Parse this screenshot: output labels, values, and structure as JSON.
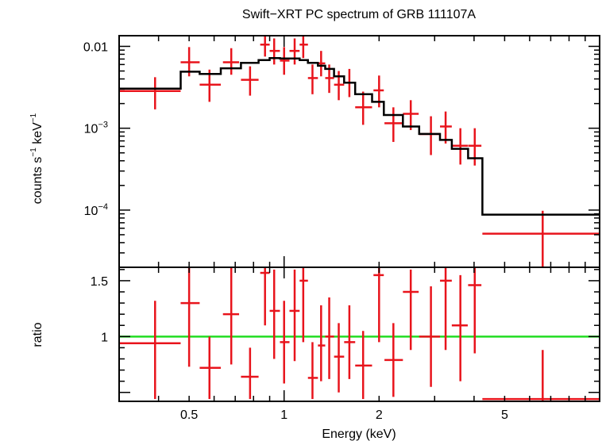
{
  "title": "Swift−XRT PC spectrum of GRB 111107A",
  "chart_data": [
    {
      "type": "line",
      "panel": "spectrum",
      "xscale": "log",
      "yscale": "log",
      "xlim": [
        0.3,
        10
      ],
      "ylim": [
        2e-05,
        0.0135
      ],
      "ylabel": {
        "main": "counts s",
        "exp1": "−1",
        "mid": " keV",
        "exp2": "−1"
      },
      "yticks": [
        {
          "value": 0.01,
          "label": "0.01"
        },
        {
          "value": 0.001,
          "base": "10",
          "exp": "−3"
        },
        {
          "value": 0.0001,
          "base": "10",
          "exp": "−4"
        }
      ],
      "colors": {
        "data": "#e8141c",
        "model": "#000000",
        "axes": "#000000"
      },
      "series": [
        {
          "role": "data",
          "points": [
            {
              "x": 0.39,
              "xlo": 0.3,
              "xhi": 0.47,
              "y": 0.00285,
              "ylo": 0.0017,
              "yhi": 0.0042
            },
            {
              "x": 0.5,
              "xlo": 0.47,
              "xhi": 0.54,
              "y": 0.0064,
              "ylo": 0.0043,
              "yhi": 0.0098
            },
            {
              "x": 0.58,
              "xlo": 0.54,
              "xhi": 0.63,
              "y": 0.0034,
              "ylo": 0.0021,
              "yhi": 0.0052
            },
            {
              "x": 0.68,
              "xlo": 0.64,
              "xhi": 0.72,
              "y": 0.0064,
              "ylo": 0.0045,
              "yhi": 0.0095
            },
            {
              "x": 0.78,
              "xlo": 0.73,
              "xhi": 0.83,
              "y": 0.0039,
              "ylo": 0.0025,
              "yhi": 0.0057
            },
            {
              "x": 0.87,
              "xlo": 0.84,
              "xhi": 0.9,
              "y": 0.0105,
              "ylo": 0.0075,
              "yhi": 0.0135
            },
            {
              "x": 0.93,
              "xlo": 0.9,
              "xhi": 0.97,
              "y": 0.0088,
              "ylo": 0.006,
              "yhi": 0.0125
            },
            {
              "x": 1.0,
              "xlo": 0.97,
              "xhi": 1.04,
              "y": 0.0067,
              "ylo": 0.0045,
              "yhi": 0.0098
            },
            {
              "x": 1.08,
              "xlo": 1.04,
              "xhi": 1.12,
              "y": 0.0088,
              "ylo": 0.006,
              "yhi": 0.0125
            },
            {
              "x": 1.15,
              "xlo": 1.12,
              "xhi": 1.19,
              "y": 0.0105,
              "ylo": 0.0072,
              "yhi": 0.0135
            },
            {
              "x": 1.23,
              "xlo": 1.19,
              "xhi": 1.28,
              "y": 0.0041,
              "ylo": 0.0026,
              "yhi": 0.006
            },
            {
              "x": 1.31,
              "xlo": 1.28,
              "xhi": 1.35,
              "y": 0.0062,
              "ylo": 0.0043,
              "yhi": 0.0088
            },
            {
              "x": 1.39,
              "xlo": 1.35,
              "xhi": 1.44,
              "y": 0.0041,
              "ylo": 0.0027,
              "yhi": 0.006
            },
            {
              "x": 1.49,
              "xlo": 1.44,
              "xhi": 1.55,
              "y": 0.0034,
              "ylo": 0.0022,
              "yhi": 0.005
            },
            {
              "x": 1.61,
              "xlo": 1.55,
              "xhi": 1.68,
              "y": 0.0036,
              "ylo": 0.0024,
              "yhi": 0.0053
            },
            {
              "x": 1.78,
              "xlo": 1.68,
              "xhi": 1.9,
              "y": 0.0018,
              "ylo": 0.0011,
              "yhi": 0.0028
            },
            {
              "x": 2.0,
              "xlo": 1.92,
              "xhi": 2.07,
              "y": 0.0029,
              "ylo": 0.0018,
              "yhi": 0.0044
            },
            {
              "x": 2.22,
              "xlo": 2.08,
              "xhi": 2.38,
              "y": 0.00115,
              "ylo": 0.00068,
              "yhi": 0.0018
            },
            {
              "x": 2.52,
              "xlo": 2.38,
              "xhi": 2.67,
              "y": 0.0015,
              "ylo": 0.00095,
              "yhi": 0.0022
            },
            {
              "x": 2.92,
              "xlo": 2.68,
              "xhi": 3.12,
              "y": 0.00085,
              "ylo": 0.00047,
              "yhi": 0.0014
            },
            {
              "x": 3.25,
              "xlo": 3.12,
              "xhi": 3.4,
              "y": 0.00105,
              "ylo": 0.00065,
              "yhi": 0.0016
            },
            {
              "x": 3.62,
              "xlo": 3.4,
              "xhi": 3.82,
              "y": 0.00061,
              "ylo": 0.00036,
              "yhi": 0.001
            },
            {
              "x": 4.02,
              "xlo": 3.83,
              "xhi": 4.22,
              "y": 0.00061,
              "ylo": 0.00035,
              "yhi": 0.001
            },
            {
              "x": 6.6,
              "xlo": 4.25,
              "xhi": 10.0,
              "y": 5.15e-05,
              "ylo": 2e-05,
              "yhi": 9.8e-05
            }
          ]
        },
        {
          "role": "model",
          "steps": [
            {
              "xlo": 0.3,
              "xhi": 0.47,
              "y": 0.00305
            },
            {
              "xlo": 0.47,
              "xhi": 0.54,
              "y": 0.0049
            },
            {
              "xlo": 0.54,
              "xhi": 0.63,
              "y": 0.0046
            },
            {
              "xlo": 0.63,
              "xhi": 0.73,
              "y": 0.0054
            },
            {
              "xlo": 0.73,
              "xhi": 0.83,
              "y": 0.0063
            },
            {
              "xlo": 0.83,
              "xhi": 0.9,
              "y": 0.0068
            },
            {
              "xlo": 0.9,
              "xhi": 0.97,
              "y": 0.0072
            },
            {
              "xlo": 0.97,
              "xhi": 1.04,
              "y": 0.0071
            },
            {
              "xlo": 1.04,
              "xhi": 1.12,
              "y": 0.0071
            },
            {
              "xlo": 1.12,
              "xhi": 1.19,
              "y": 0.0068
            },
            {
              "xlo": 1.19,
              "xhi": 1.28,
              "y": 0.0063
            },
            {
              "xlo": 1.28,
              "xhi": 1.35,
              "y": 0.0058
            },
            {
              "xlo": 1.35,
              "xhi": 1.44,
              "y": 0.0053
            },
            {
              "xlo": 1.44,
              "xhi": 1.55,
              "y": 0.0043
            },
            {
              "xlo": 1.55,
              "xhi": 1.68,
              "y": 0.0036
            },
            {
              "xlo": 1.68,
              "xhi": 1.9,
              "y": 0.0026
            },
            {
              "xlo": 1.9,
              "xhi": 2.07,
              "y": 0.0021
            },
            {
              "xlo": 2.07,
              "xhi": 2.38,
              "y": 0.00145
            },
            {
              "xlo": 2.38,
              "xhi": 2.68,
              "y": 0.00105
            },
            {
              "xlo": 2.68,
              "xhi": 3.12,
              "y": 0.00085
            },
            {
              "xlo": 3.12,
              "xhi": 3.4,
              "y": 0.00072
            },
            {
              "xlo": 3.4,
              "xhi": 3.83,
              "y": 0.00056
            },
            {
              "xlo": 3.83,
              "xhi": 4.25,
              "y": 0.00043
            },
            {
              "xlo": 4.25,
              "xhi": 10.0,
              "y": 8.8e-05
            }
          ]
        }
      ]
    },
    {
      "type": "scatter",
      "panel": "ratio",
      "xscale": "log",
      "yscale": "linear",
      "xlim": [
        0.3,
        10
      ],
      "ylim": [
        0.42,
        1.62
      ],
      "xlabel": "Energy (keV)",
      "ylabel": "ratio",
      "xticks": [
        {
          "value": 0.5,
          "label": "0.5"
        },
        {
          "value": 1,
          "label": "1"
        },
        {
          "value": 2,
          "label": "2"
        },
        {
          "value": 5,
          "label": "5"
        }
      ],
      "yticks": [
        {
          "value": 1,
          "label": "1"
        },
        {
          "value": 1.5,
          "label": "1.5"
        }
      ],
      "reference_line": {
        "y": 1.0,
        "color": "#22dd22"
      },
      "colors": {
        "data": "#e8141c",
        "axes": "#000000"
      },
      "points": [
        {
          "x": 0.39,
          "xlo": 0.3,
          "xhi": 0.47,
          "y": 0.94,
          "ylo": 0.44,
          "yhi": 1.32
        },
        {
          "x": 0.5,
          "xlo": 0.47,
          "xhi": 0.54,
          "y": 1.3,
          "ylo": 0.73,
          "yhi": 1.62
        },
        {
          "x": 0.58,
          "xlo": 0.54,
          "xhi": 0.63,
          "y": 0.72,
          "ylo": 0.44,
          "yhi": 1.0
        },
        {
          "x": 0.68,
          "xlo": 0.64,
          "xhi": 0.72,
          "y": 1.2,
          "ylo": 0.75,
          "yhi": 1.62
        },
        {
          "x": 0.78,
          "xlo": 0.73,
          "xhi": 0.83,
          "y": 0.64,
          "ylo": 0.44,
          "yhi": 0.9
        },
        {
          "x": 0.87,
          "xlo": 0.84,
          "xhi": 0.9,
          "y": 1.57,
          "ylo": 1.1,
          "yhi": 1.62
        },
        {
          "x": 0.93,
          "xlo": 0.9,
          "xhi": 0.97,
          "y": 1.23,
          "ylo": 0.8,
          "yhi": 1.6
        },
        {
          "x": 1.0,
          "xlo": 0.97,
          "xhi": 1.04,
          "y": 0.95,
          "ylo": 0.58,
          "yhi": 1.32
        },
        {
          "x": 1.08,
          "xlo": 1.04,
          "xhi": 1.12,
          "y": 1.23,
          "ylo": 0.78,
          "yhi": 1.6
        },
        {
          "x": 1.15,
          "xlo": 1.12,
          "xhi": 1.19,
          "y": 1.5,
          "ylo": 0.95,
          "yhi": 1.62
        },
        {
          "x": 1.23,
          "xlo": 1.19,
          "xhi": 1.28,
          "y": 0.63,
          "ylo": 0.44,
          "yhi": 0.95
        },
        {
          "x": 1.31,
          "xlo": 1.28,
          "xhi": 1.35,
          "y": 0.92,
          "ylo": 0.6,
          "yhi": 1.28
        },
        {
          "x": 1.39,
          "xlo": 1.35,
          "xhi": 1.44,
          "y": 1.0,
          "ylo": 0.62,
          "yhi": 1.35
        },
        {
          "x": 1.49,
          "xlo": 1.44,
          "xhi": 1.55,
          "y": 0.82,
          "ylo": 0.5,
          "yhi": 1.12
        },
        {
          "x": 1.61,
          "xlo": 1.55,
          "xhi": 1.68,
          "y": 0.95,
          "ylo": 0.62,
          "yhi": 1.28
        },
        {
          "x": 1.78,
          "xlo": 1.68,
          "xhi": 1.9,
          "y": 0.74,
          "ylo": 0.44,
          "yhi": 1.05
        },
        {
          "x": 2.0,
          "xlo": 1.92,
          "xhi": 2.07,
          "y": 1.55,
          "ylo": 0.95,
          "yhi": 1.62
        },
        {
          "x": 2.22,
          "xlo": 2.08,
          "xhi": 2.38,
          "y": 0.79,
          "ylo": 0.46,
          "yhi": 1.12
        },
        {
          "x": 2.52,
          "xlo": 2.38,
          "xhi": 2.67,
          "y": 1.4,
          "ylo": 0.88,
          "yhi": 1.6
        },
        {
          "x": 2.92,
          "xlo": 2.68,
          "xhi": 3.12,
          "y": 1.0,
          "ylo": 0.55,
          "yhi": 1.45
        },
        {
          "x": 3.25,
          "xlo": 3.12,
          "xhi": 3.4,
          "y": 1.5,
          "ylo": 0.88,
          "yhi": 1.62
        },
        {
          "x": 3.62,
          "xlo": 3.4,
          "xhi": 3.82,
          "y": 1.1,
          "ylo": 0.6,
          "yhi": 1.55
        },
        {
          "x": 4.02,
          "xlo": 3.83,
          "xhi": 4.22,
          "y": 1.46,
          "ylo": 0.85,
          "yhi": 1.62
        },
        {
          "x": 6.6,
          "xlo": 4.25,
          "xhi": 10.0,
          "y": 0.44,
          "ylo": 0.42,
          "yhi": 0.88
        }
      ]
    }
  ]
}
